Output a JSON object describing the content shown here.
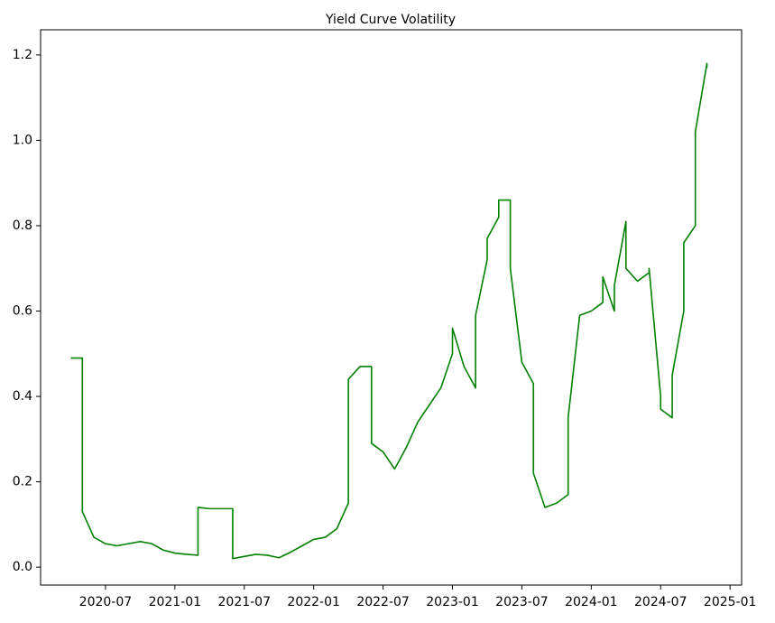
{
  "chart_data": {
    "type": "line",
    "title": "Yield Curve Volatility",
    "x": [
      "2020-04",
      "2020-05",
      "2020-05",
      "2020-06",
      "2020-07",
      "2020-08",
      "2020-09",
      "2020-10",
      "2020-11",
      "2020-12",
      "2021-01",
      "2021-02",
      "2021-03",
      "2021-03",
      "2021-04",
      "2021-05",
      "2021-06",
      "2021-06",
      "2021-07",
      "2021-08",
      "2021-09",
      "2021-10",
      "2021-11",
      "2021-12",
      "2022-01",
      "2022-02",
      "2022-03",
      "2022-04",
      "2022-04",
      "2022-05",
      "2022-06",
      "2022-06",
      "2022-07",
      "2022-08",
      "2022-09",
      "2022-10",
      "2022-11",
      "2022-12",
      "2023-01",
      "2023-01",
      "2023-02",
      "2023-03",
      "2023-03",
      "2023-04",
      "2023-04",
      "2023-05",
      "2023-05",
      "2023-06",
      "2023-06",
      "2023-07",
      "2023-08",
      "2023-08",
      "2023-09",
      "2023-10",
      "2023-11",
      "2023-11",
      "2023-12",
      "2024-01",
      "2024-02",
      "2024-02",
      "2024-03",
      "2024-03",
      "2024-04",
      "2024-04",
      "2024-05",
      "2024-06",
      "2024-06",
      "2024-07",
      "2024-07",
      "2024-08",
      "2024-08",
      "2024-09",
      "2024-09",
      "2024-10",
      "2024-10",
      "2024-11",
      "2024-11"
    ],
    "series": [
      {
        "name": "Yield Curve Volatility",
        "color": "#008000",
        "values": [
          0.49,
          0.49,
          0.13,
          0.07,
          0.055,
          0.05,
          0.055,
          0.06,
          0.055,
          0.04,
          0.033,
          0.03,
          0.028,
          0.14,
          0.137,
          0.137,
          0.137,
          0.02,
          0.025,
          0.03,
          0.028,
          0.022,
          0.035,
          0.05,
          0.065,
          0.07,
          0.09,
          0.15,
          0.44,
          0.47,
          0.47,
          0.29,
          0.27,
          0.23,
          0.28,
          0.34,
          0.38,
          0.42,
          0.5,
          0.56,
          0.47,
          0.42,
          0.59,
          0.72,
          0.77,
          0.82,
          0.86,
          0.86,
          0.7,
          0.48,
          0.43,
          0.22,
          0.14,
          0.15,
          0.17,
          0.35,
          0.59,
          0.6,
          0.62,
          0.68,
          0.6,
          0.66,
          0.81,
          0.7,
          0.67,
          0.69,
          0.7,
          0.4,
          0.37,
          0.35,
          0.45,
          0.6,
          0.76,
          0.8,
          1.02,
          1.18,
          1.17
        ]
      }
    ],
    "xlim": [
      "2020-01",
      "2025-02"
    ],
    "xticks": [
      "2020-07",
      "2021-01",
      "2021-07",
      "2022-01",
      "2022-07",
      "2023-01",
      "2023-07",
      "2024-01",
      "2024-07",
      "2025-01"
    ],
    "ylim": [
      -0.042,
      1.259
    ],
    "yticks": [
      {
        "value": 0,
        "label": "0.0"
      },
      0.2,
      0.4,
      0.6,
      0.8,
      {
        "value": 1,
        "label": "1.0"
      },
      1.2
    ]
  }
}
